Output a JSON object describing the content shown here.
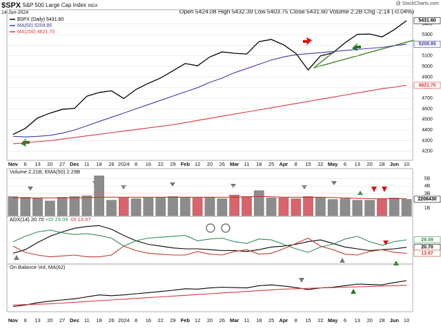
{
  "chart_data": [
    {
      "type": "line",
      "title": "$SPX",
      "subtitle": "S&P 500 Large Cap Index",
      "exchange": "INDX",
      "date": "14-Jun-2024",
      "quote": "Open 5424.08 High 5432.39 Low 5403.75 Close 5431.60 Volume 2.2B Chg -2.14 (-0.04%)",
      "source": "@ StockCharts.com",
      "categories": [
        "Nov",
        "6",
        "13",
        "20",
        "27",
        "Dec",
        "11",
        "18",
        "26",
        "2024",
        "8",
        "16",
        "22",
        "29",
        "Feb",
        "12",
        "20",
        "26",
        "Mar",
        "11",
        "18",
        "25",
        "Apr",
        "8",
        "15",
        "22",
        "May",
        "6",
        "13",
        "20",
        "28",
        "Jun",
        "10"
      ],
      "series": [
        {
          "name": "$SPX (Daily) 5431.60",
          "color": "#000000",
          "values": [
            4358,
            4415,
            4514,
            4559,
            4595,
            4604,
            4719,
            4754,
            4770,
            4697,
            4783,
            4840,
            4891,
            4959,
            5027,
            5006,
            5089,
            5137,
            5124,
            5117,
            5234,
            5254,
            5204,
            5123,
            4967,
            5100,
            5128,
            5223,
            5303,
            5305,
            5278,
            5347,
            5431.6
          ]
        },
        {
          "name": "MA(50) 5209.85",
          "color": "#3b3b9e",
          "values": [
            4340,
            4335,
            4340,
            4350,
            4370,
            4400,
            4440,
            4480,
            4520,
            4560,
            4600,
            4640,
            4680,
            4720,
            4760,
            4800,
            4850,
            4890,
            4940,
            4980,
            5020,
            5060,
            5090,
            5110,
            5120,
            5130,
            5140,
            5150,
            5160,
            5170,
            5180,
            5195,
            5209.85
          ]
        },
        {
          "name": "MA(200) 4821.70",
          "color": "#d9363e",
          "values": [
            4270,
            4280,
            4290,
            4300,
            4315,
            4330,
            4345,
            4360,
            4375,
            4390,
            4405,
            4420,
            4435,
            4450,
            4470,
            4490,
            4510,
            4530,
            4550,
            4570,
            4590,
            4610,
            4630,
            4650,
            4670,
            4690,
            4710,
            4730,
            4750,
            4770,
            4790,
            4805,
            4821.7
          ]
        }
      ],
      "ylim": [
        4140,
        5470
      ],
      "yticks": [
        4200,
        4300,
        4400,
        4500,
        4600,
        4700,
        4800,
        4900,
        5000,
        5100,
        5200,
        5300,
        5400
      ],
      "tags": [
        {
          "value": 5431.6,
          "label": "5431.60",
          "color": "#000000"
        },
        {
          "value": 5209.85,
          "label": "5209.85",
          "color": "#3b3b9e"
        },
        {
          "value": 4821.7,
          "label": "4821.70",
          "color": "#d9363e"
        }
      ],
      "grid": true,
      "legend": "upper left"
    },
    {
      "type": "bar",
      "title": "Volume 2.21B, EMA(50) 2.29B",
      "series": [
        {
          "color": "#8c8c8c",
          "down_color": "#d9646c",
          "values": [
            2.6,
            2.5,
            2.4,
            2.0,
            2.5,
            2.6,
            2.7,
            5.4,
            2.1,
            2.4,
            2.3,
            2.4,
            2.5,
            2.6,
            2.5,
            2.4,
            2.5,
            2.3,
            2.8,
            2.6,
            3.4,
            2.4,
            2.4,
            2.3,
            2.6,
            2.5,
            2.2,
            2.3,
            2.1,
            2.1,
            2.3,
            2.4,
            2.21
          ]
        },
        {
          "type": "line",
          "color": "#c0392b",
          "values": [
            2.4,
            2.4,
            2.4,
            2.4,
            2.4,
            2.4,
            2.45,
            2.5,
            2.5,
            2.5,
            2.5,
            2.5,
            2.5,
            2.5,
            2.5,
            2.5,
            2.5,
            2.5,
            2.5,
            2.55,
            2.6,
            2.55,
            2.5,
            2.5,
            2.5,
            2.5,
            2.45,
            2.4,
            2.35,
            2.3,
            2.3,
            2.3,
            2.29
          ]
        }
      ],
      "ylim": [
        0,
        5.8
      ],
      "yticks": [
        {
          "value": 1,
          "label": "1B"
        },
        {
          "value": 2,
          "label": "2B"
        },
        {
          "value": 3,
          "label": "3B"
        },
        {
          "value": 4,
          "label": "4B"
        },
        {
          "value": 5,
          "label": "5B"
        }
      ],
      "tags": [
        {
          "value": 2.21,
          "label": "2206430",
          "color": "#000000"
        }
      ],
      "grid": true
    },
    {
      "type": "line",
      "series": [
        {
          "name": "ADX(14) 20.70",
          "color": "#000000",
          "values": [
            14,
            18,
            26,
            33,
            38,
            42,
            44,
            45,
            41,
            34,
            28,
            24,
            22,
            20,
            19,
            19,
            18,
            17,
            17,
            16,
            18,
            21,
            22,
            24,
            27,
            29,
            25,
            21,
            19,
            17,
            18,
            19,
            20.7
          ]
        },
        {
          "name": "+DI 29.09",
          "color": "#2e8b57",
          "values": [
            27,
            33,
            38,
            40,
            37,
            35,
            36,
            34,
            31,
            22,
            28,
            31,
            32,
            33,
            34,
            28,
            30,
            31,
            27,
            25,
            30,
            29,
            24,
            19,
            15,
            21,
            24,
            30,
            33,
            27,
            23,
            27,
            29.09
          ]
        },
        {
          "name": "-DI 13.97",
          "color": "#c0392b",
          "values": [
            22,
            15,
            12,
            10,
            11,
            12,
            10,
            10,
            12,
            22,
            17,
            14,
            13,
            12,
            12,
            16,
            13,
            12,
            16,
            18,
            13,
            14,
            19,
            25,
            31,
            22,
            18,
            13,
            12,
            16,
            18,
            15,
            13.97
          ]
        }
      ],
      "ylim": [
        5,
        50
      ],
      "tags": [
        {
          "value": 29.09,
          "label": "29.09",
          "color": "#2e8b57"
        },
        {
          "value": 20.7,
          "label": "20.70",
          "color": "#000000"
        },
        {
          "value": 13.97,
          "label": "13.97",
          "color": "#c0392b"
        }
      ]
    },
    {
      "type": "line",
      "title": "On Balance Vol, MA(62)",
      "series": [
        {
          "color": "#000000",
          "values": [
            8,
            12,
            18,
            22,
            25,
            28,
            33,
            38,
            36,
            38,
            41,
            44,
            47,
            50,
            54,
            53,
            56,
            58,
            57,
            56,
            62,
            64,
            61,
            57,
            52,
            56,
            58,
            62,
            66,
            65,
            64,
            70,
            75
          ]
        },
        {
          "color": "#d9363e",
          "values": [
            12,
            13,
            14,
            15,
            17,
            19,
            21,
            23,
            25,
            27,
            29,
            31,
            33,
            35,
            37,
            39,
            41,
            43,
            45,
            47,
            49,
            51,
            53,
            54,
            55,
            56,
            57,
            58,
            59,
            60,
            61,
            62,
            63
          ]
        }
      ],
      "ylim": [
        0,
        100
      ]
    }
  ]
}
